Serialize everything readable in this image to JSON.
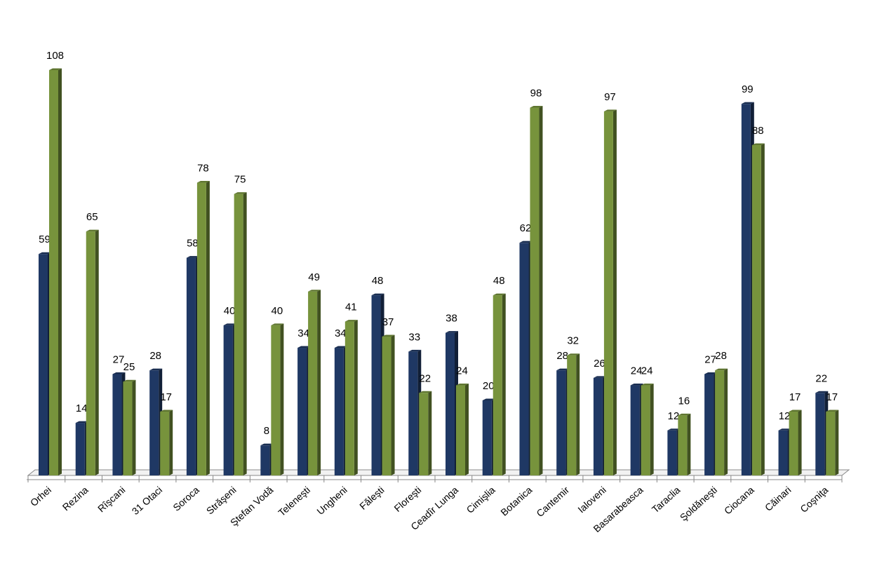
{
  "chart_data": {
    "type": "bar",
    "categories": [
      "Orhei",
      "Rezina",
      "Rîşcani",
      "31 Otaci",
      "Soroca",
      "Străşeni",
      "Ştefan Vodă",
      "Teleneşti",
      "Ungheni",
      "Făleşti",
      "Floreşti",
      "Ceadîr Lunga",
      "Cimişlia",
      "Botanica",
      "Cantemir",
      "Ialoveni",
      "Basarabeasca",
      "Taraclia",
      "Şoldăneşti",
      "Ciocana",
      "Căinari",
      "Coşniţa"
    ],
    "series": [
      {
        "color": "#1f3864",
        "values": [
          59,
          14,
          27,
          28,
          58,
          40,
          8,
          34,
          34,
          48,
          33,
          38,
          20,
          62,
          28,
          26,
          24,
          12,
          27,
          99,
          12,
          22
        ]
      },
      {
        "color": "#77933c",
        "values": [
          108,
          65,
          25,
          17,
          78,
          75,
          40,
          49,
          41,
          37,
          22,
          24,
          48,
          98,
          32,
          97,
          24,
          16,
          28,
          88,
          17,
          17
        ]
      }
    ],
    "ylim": [
      0,
      108
    ]
  }
}
